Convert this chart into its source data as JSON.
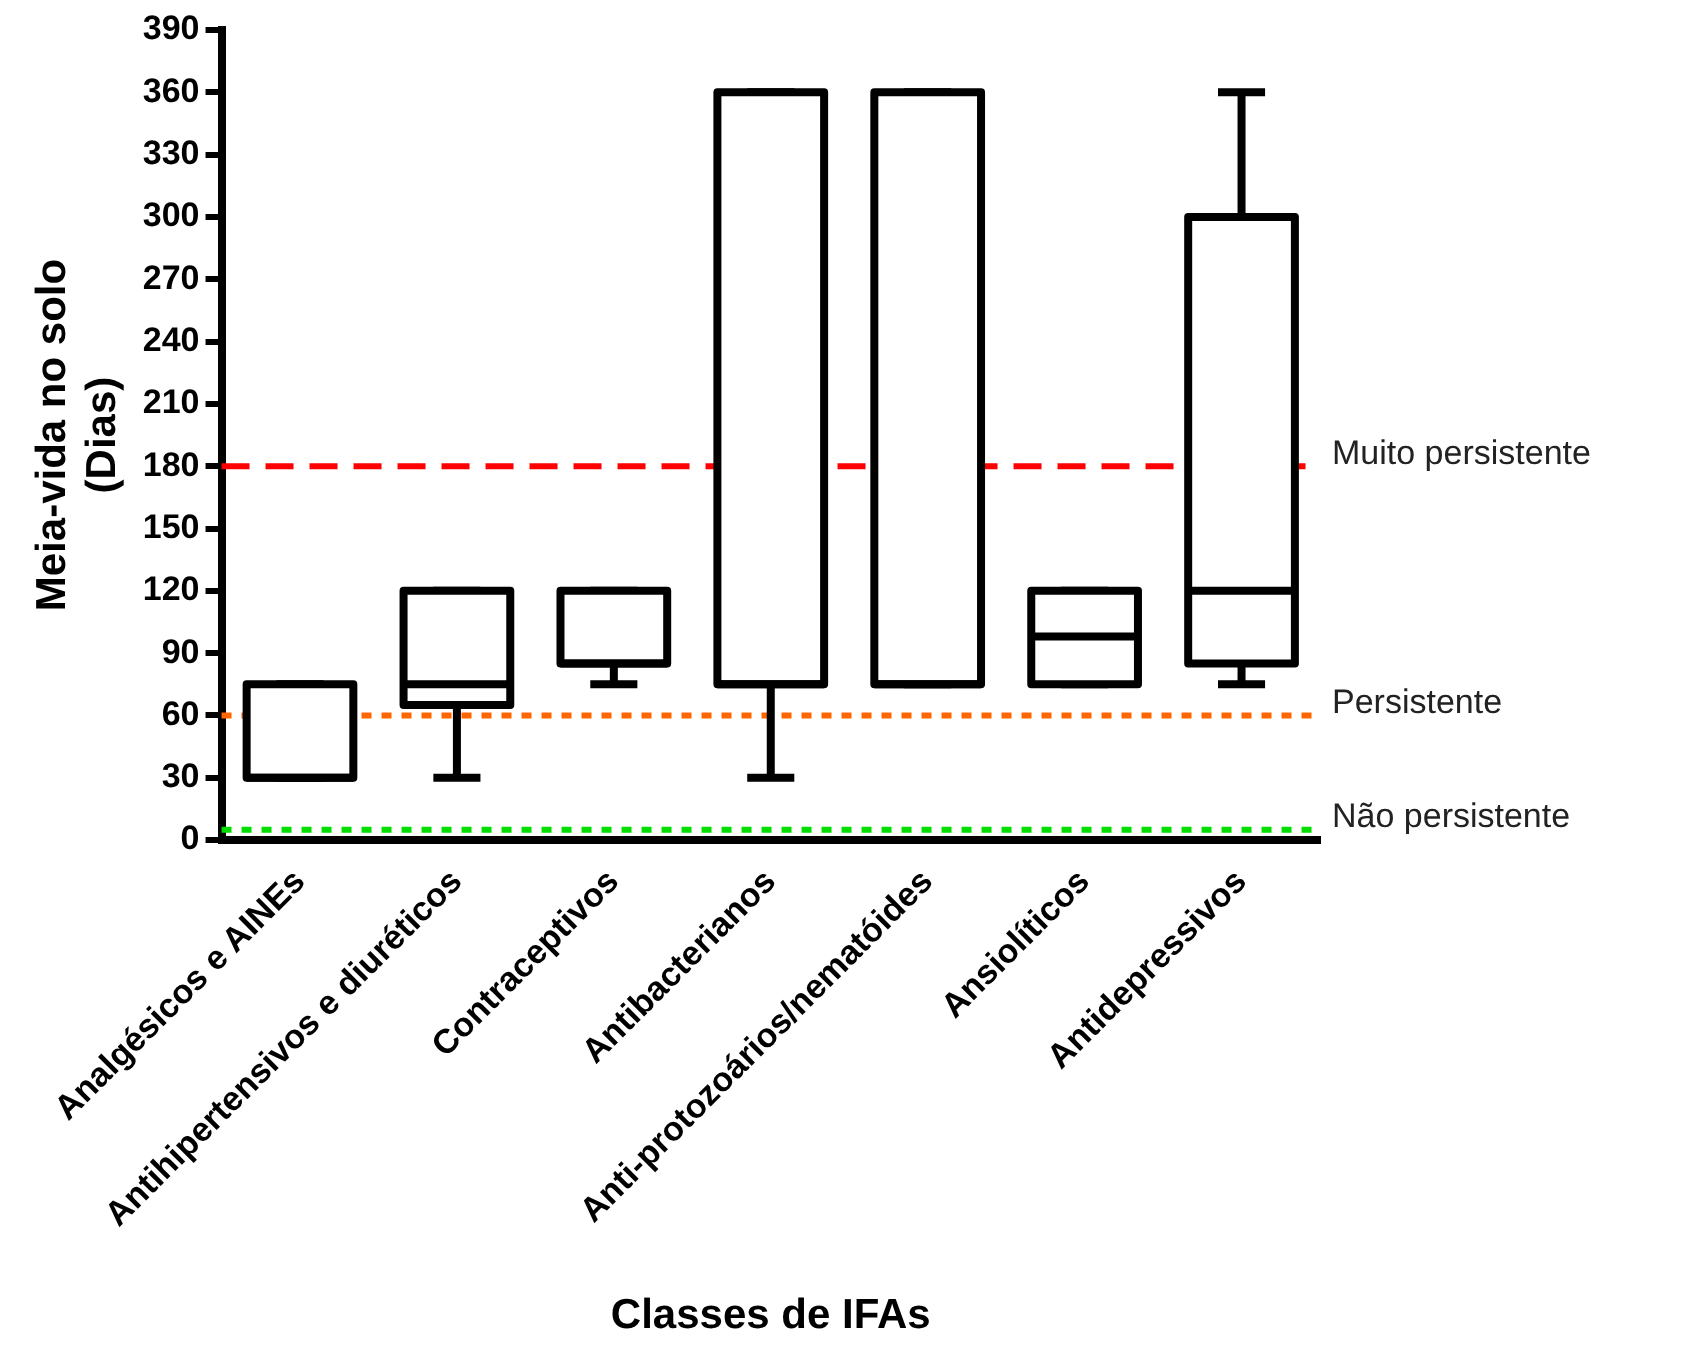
{
  "chart_data": {
    "type": "box",
    "xlabel": "Classes de IFAs",
    "ylabel": "Meia-vida no solo\n(Dias)",
    "categories": [
      "Analgésicos e AINEs",
      "Antihipertensivos e diuréticos",
      "Contraceptivos",
      "Antibacterianos",
      "Anti-protozoários/nematóides",
      "Ansiolíticos",
      "Antidepressivos"
    ],
    "boxes": [
      {
        "low": 30,
        "q1": 30,
        "median": 30,
        "q3": 75,
        "high": 75
      },
      {
        "low": 30,
        "q1": 65,
        "median": 75,
        "q3": 120,
        "high": 120
      },
      {
        "low": 75,
        "q1": 85,
        "median": 85,
        "q3": 120,
        "high": 120
      },
      {
        "low": 30,
        "q1": 75,
        "median": 75,
        "q3": 360,
        "high": 360
      },
      {
        "low": 75,
        "q1": 75,
        "median": 75,
        "q3": 360,
        "high": 360
      },
      {
        "low": 75,
        "q1": 75,
        "median": 98,
        "q3": 120,
        "high": 120
      },
      {
        "low": 75,
        "q1": 85,
        "median": 120,
        "q3": 300,
        "high": 360
      }
    ],
    "ylim": [
      0,
      390
    ],
    "yticks": [
      0,
      30,
      60,
      90,
      120,
      150,
      180,
      210,
      240,
      270,
      300,
      330,
      360,
      390
    ],
    "grid": false,
    "legend": false,
    "ref_lines": [
      {
        "axis": "y",
        "value": 180,
        "label": "Muito persistente",
        "color": "#ff0000",
        "line_style": "dashed"
      },
      {
        "axis": "y",
        "value": 60,
        "label": "Persistente",
        "color": "#ff6600",
        "line_style": "dotted"
      },
      {
        "axis": "y",
        "value": 5,
        "label": "Não persistente",
        "color": "#00dd00",
        "line_style": "dotted"
      }
    ]
  }
}
